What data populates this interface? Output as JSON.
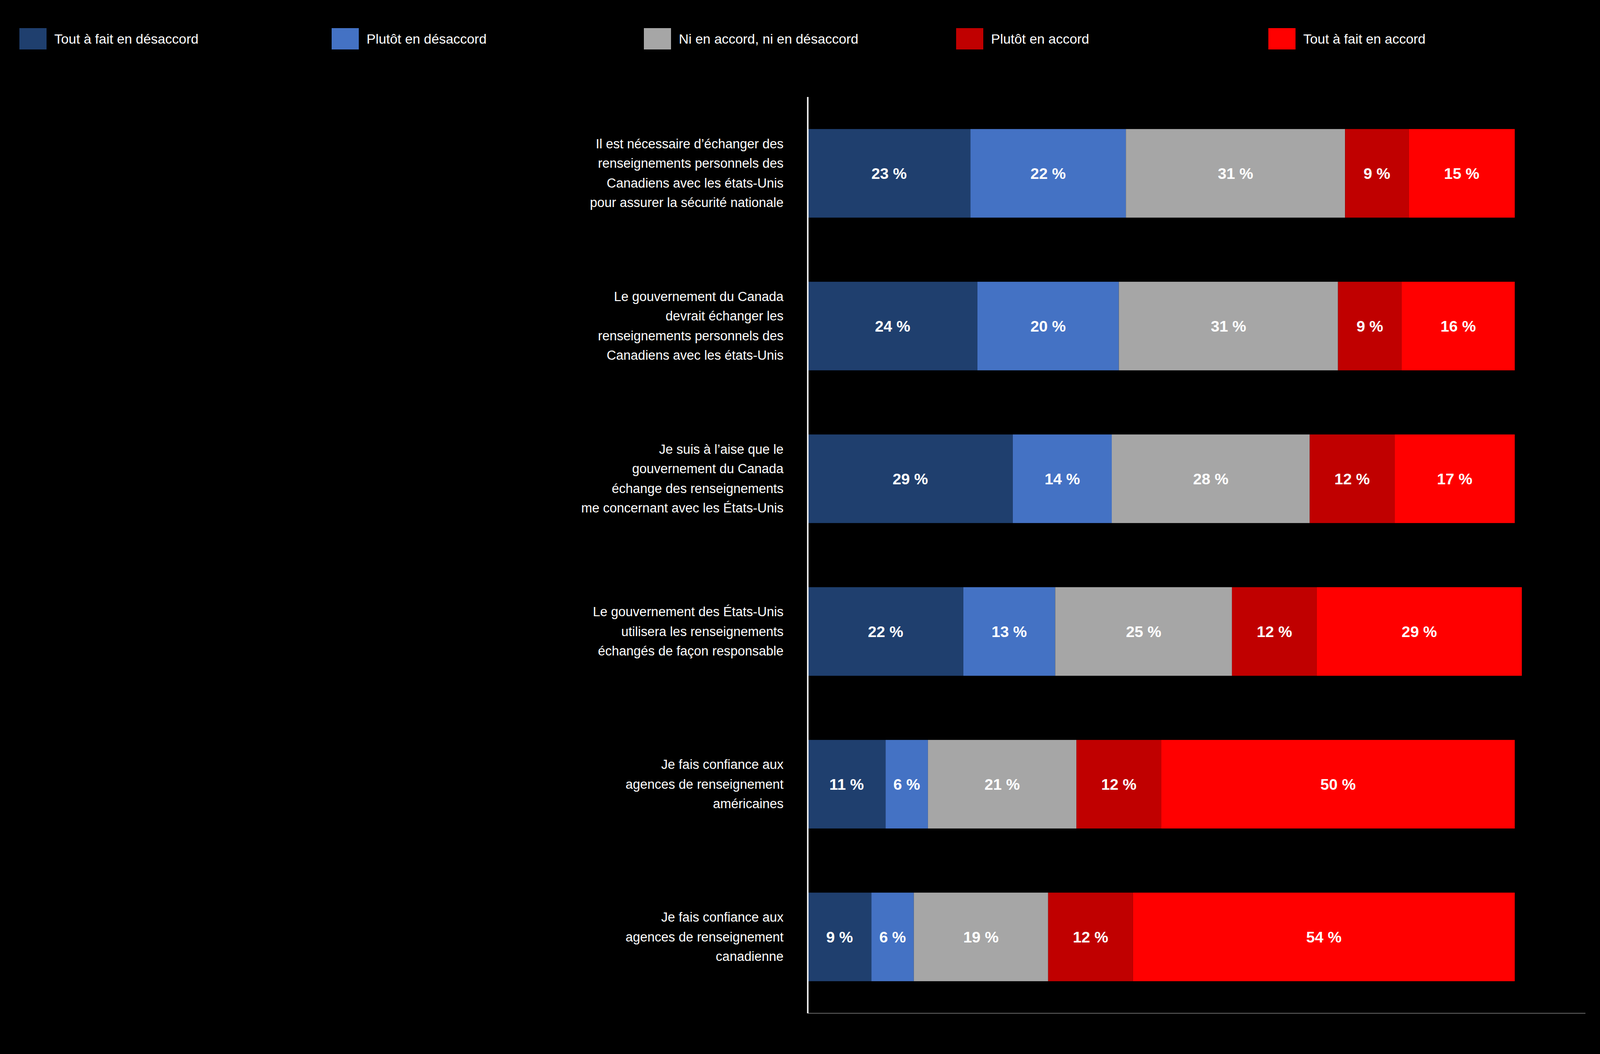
{
  "chart_data": {
    "type": "bar",
    "orientation": "horizontal",
    "stacked": true,
    "data_labels": true,
    "tick_labels": false,
    "grid": false,
    "legend": "top",
    "xlim": [
      0,
      110
    ],
    "categories": [
      "Il est nécessaire d’échanger des\nrenseignements personnels des\nCanadiens avec les états-Unis\npour assurer la sécurité nationale",
      "Le gouvernement du Canada\ndevrait échanger les\nrenseignements personnels des\nCanadiens avec les états-Unis",
      "Je suis à l’aise que le\ngouvernement du Canada\néchange des renseignements\nme concernant avec les États-Unis",
      "Le gouvernement des États-Unis\nutilisera les renseignements\néchangés de façon responsable",
      "Je fais confiance aux\nagences de renseignement\naméricaines",
      "Je fais confiance aux\nagences de renseignement\ncanadienne"
    ],
    "series": [
      {
        "name": "Tout à fait en désaccord",
        "color": "#1f3f6e",
        "values": [
          23,
          24,
          29,
          22,
          11,
          9
        ],
        "value_labels": [
          "23 %",
          "24 %",
          "29 %",
          "22 %",
          "11 %",
          "9 %"
        ]
      },
      {
        "name": "Plutôt en désaccord",
        "color": "#4472c4",
        "values": [
          22,
          20,
          14,
          13,
          6,
          6
        ],
        "value_labels": [
          "22 %",
          "20 %",
          "14 %",
          "13 %",
          "6 %",
          "6 %"
        ]
      },
      {
        "name": "Ni en accord, ni en désaccord",
        "color": "#a6a6a6",
        "values": [
          31,
          31,
          28,
          25,
          21,
          19
        ],
        "value_labels": [
          "31 %",
          "31 %",
          "28 %",
          "25 %",
          "21 %",
          "19 %"
        ]
      },
      {
        "name": "Plutôt en accord",
        "color": "#c00000",
        "values": [
          9,
          9,
          12,
          12,
          12,
          12
        ],
        "value_labels": [
          "9 %",
          "9 %",
          "12 %",
          "12 %",
          "12 %",
          "12 %"
        ]
      },
      {
        "name": "Tout à fait en accord",
        "color": "#ff0000",
        "values": [
          15,
          16,
          17,
          29,
          50,
          54
        ],
        "value_labels": [
          "15 %",
          "16 %",
          "17 %",
          "29 %",
          "50 %",
          "54 %"
        ]
      }
    ]
  }
}
